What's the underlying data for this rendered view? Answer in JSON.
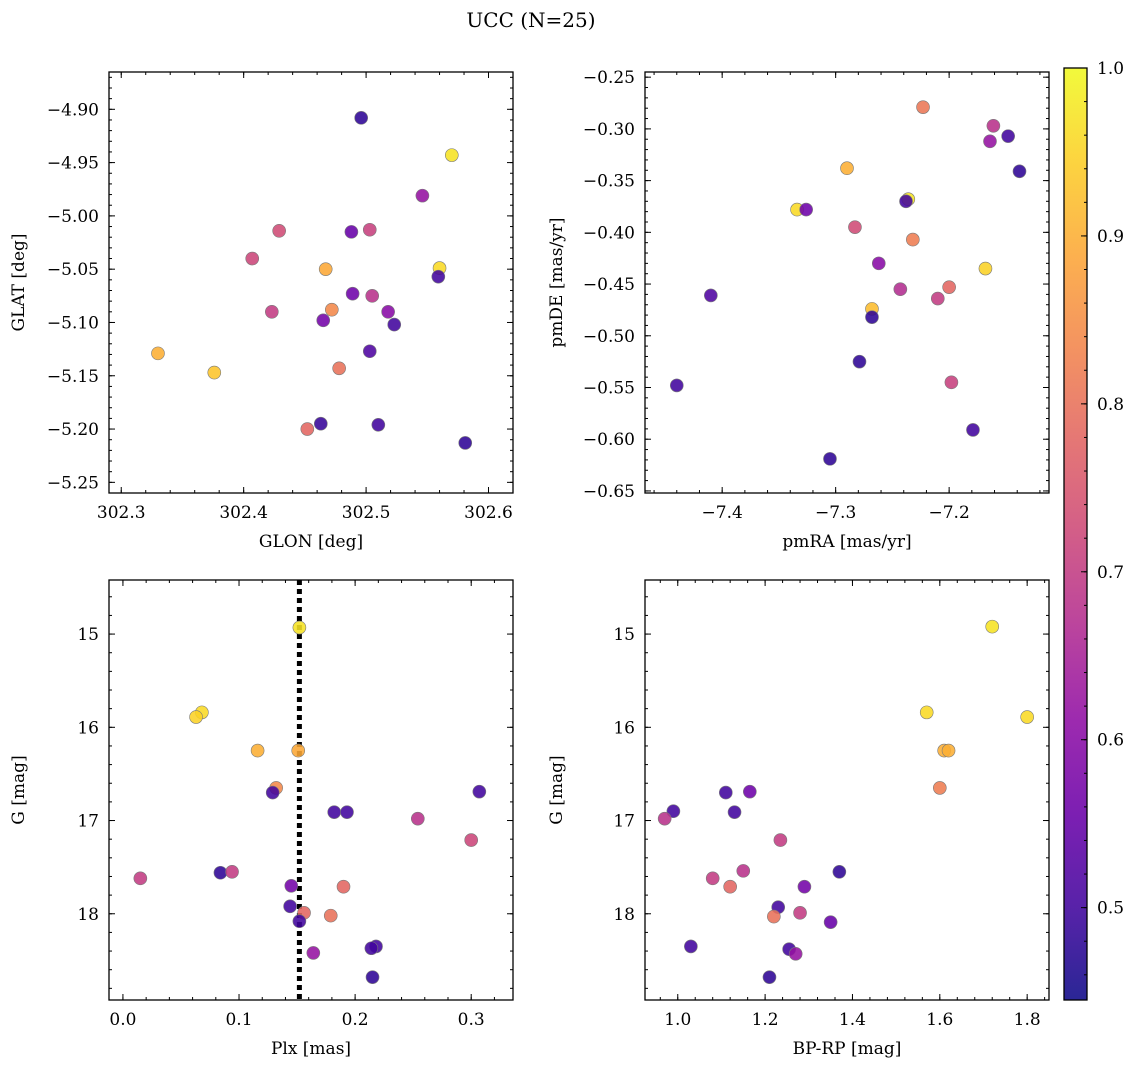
{
  "figure": {
    "title": "UCC (N=25)"
  },
  "colors": {
    "colormap": [
      "#0d0887",
      "#41049d",
      "#6a00a8",
      "#8f0da4",
      "#b12a90",
      "#cc4778",
      "#e16462",
      "#f2844b",
      "#fca636",
      "#fcce25",
      "#f0f921"
    ]
  },
  "colorbar": {
    "vmin": 0.445,
    "vmax": 1.0,
    "ticks": [
      "0.5",
      "0.6",
      "0.7",
      "0.8",
      "0.9",
      "1.0"
    ],
    "tick_values": [
      0.5,
      0.6,
      0.7,
      0.8,
      0.9,
      1.0
    ]
  },
  "chart_data": [
    {
      "type": "scatter",
      "xlabel": "GLON [deg]",
      "ylabel": "GLAT [deg]",
      "xlim": [
        302.29,
        302.62
      ],
      "ylim": [
        -5.26,
        -4.865
      ],
      "yinvert": false,
      "xticks": [
        302.3,
        302.4,
        302.5,
        302.6
      ],
      "xtick_labels": [
        "302.3",
        "302.4",
        "302.5",
        "302.6"
      ],
      "yticks": [
        -5.25,
        -5.2,
        -5.15,
        -5.1,
        -5.05,
        -5.0,
        -4.95,
        -4.9
      ],
      "ytick_labels": [
        "−5.25",
        "−5.20",
        "−5.15",
        "−5.10",
        "−5.05",
        "−5.00",
        "−4.95",
        "−4.90"
      ],
      "x": [
        302.57,
        302.56,
        302.33,
        302.376,
        302.467,
        302.472,
        302.452,
        302.478,
        302.407,
        302.429,
        302.423,
        302.503,
        302.505,
        302.496,
        302.546,
        302.488,
        302.489,
        302.518,
        302.503,
        302.523,
        302.559,
        302.465,
        302.463,
        302.51,
        302.581
      ],
      "y": [
        -4.943,
        -5.049,
        -5.129,
        -5.147,
        -5.05,
        -5.088,
        -5.2,
        -5.143,
        -5.04,
        -5.014,
        -5.09,
        -5.013,
        -5.075,
        -4.908,
        -4.981,
        -5.015,
        -5.073,
        -5.09,
        -5.127,
        -5.102,
        -5.057,
        -5.098,
        -5.195,
        -5.196,
        -5.213
      ],
      "v": [
        0.97,
        0.96,
        0.9,
        0.93,
        0.89,
        0.84,
        0.78,
        0.8,
        0.72,
        0.73,
        0.7,
        0.71,
        0.68,
        0.48,
        0.62,
        0.55,
        0.56,
        0.6,
        0.52,
        0.5,
        0.5,
        0.57,
        0.49,
        0.5,
        0.48
      ]
    },
    {
      "type": "scatter",
      "xlabel": "pmRA [mas/yr]",
      "ylabel": "pmDE [mas/yr]",
      "xlim": [
        -7.468,
        -7.112
      ],
      "ylim": [
        -0.652,
        -0.245
      ],
      "yinvert": false,
      "xticks": [
        -7.4,
        -7.3,
        -7.2
      ],
      "xtick_labels": [
        "−7.4",
        "−7.3",
        "−7.2"
      ],
      "yticks": [
        -0.65,
        -0.6,
        -0.55,
        -0.5,
        -0.45,
        -0.4,
        -0.35,
        -0.3,
        -0.25
      ],
      "ytick_labels": [
        "−0.65",
        "−0.60",
        "−0.55",
        "−0.50",
        "−0.45",
        "−0.40",
        "−0.35",
        "−0.30",
        "−0.25"
      ],
      "x": [
        -7.236,
        -7.168,
        -7.334,
        -7.29,
        -7.268,
        -7.232,
        -7.2,
        -7.223,
        -7.283,
        -7.198,
        -7.21,
        -7.161,
        -7.243,
        -7.262,
        -7.164,
        -7.326,
        -7.238,
        -7.41,
        -7.148,
        -7.44,
        -7.138,
        -7.268,
        -7.279,
        -7.305,
        -7.179
      ],
      "y": [
        -0.368,
        -0.435,
        -0.378,
        -0.338,
        -0.474,
        -0.407,
        -0.453,
        -0.279,
        -0.395,
        -0.545,
        -0.464,
        -0.297,
        -0.455,
        -0.43,
        -0.312,
        -0.378,
        -0.37,
        -0.461,
        -0.307,
        -0.548,
        -0.341,
        -0.482,
        -0.525,
        -0.619,
        -0.591
      ],
      "v": [
        0.97,
        0.95,
        0.96,
        0.9,
        0.92,
        0.82,
        0.78,
        0.81,
        0.73,
        0.71,
        0.7,
        0.68,
        0.67,
        0.6,
        0.62,
        0.56,
        0.5,
        0.52,
        0.5,
        0.5,
        0.48,
        0.48,
        0.48,
        0.48,
        0.5
      ]
    },
    {
      "type": "scatter",
      "xlabel": "Plx [mas]",
      "ylabel": "G [mag]",
      "xlim": [
        -0.012,
        0.336
      ],
      "ylim": [
        18.925,
        14.42
      ],
      "yinvert": true,
      "xticks": [
        0.0,
        0.1,
        0.2,
        0.3
      ],
      "xtick_labels": [
        "0.0",
        "0.1",
        "0.2",
        "0.3"
      ],
      "yticks": [
        15,
        16,
        17,
        18
      ],
      "ytick_labels": [
        "15",
        "16",
        "17",
        "18"
      ],
      "vline": 0.152,
      "x": [
        0.152,
        0.068,
        0.063,
        0.116,
        0.151,
        0.132,
        0.129,
        0.182,
        0.193,
        0.254,
        0.307,
        0.3,
        0.015,
        0.084,
        0.094,
        0.145,
        0.19,
        0.144,
        0.156,
        0.179,
        0.152,
        0.218,
        0.214,
        0.164,
        0.215
      ],
      "y": [
        14.93,
        15.84,
        15.89,
        16.25,
        16.25,
        16.65,
        16.7,
        16.91,
        16.91,
        16.98,
        16.69,
        17.21,
        17.62,
        17.56,
        17.55,
        17.7,
        17.71,
        17.92,
        17.99,
        18.02,
        18.08,
        18.35,
        18.37,
        18.42,
        18.68
      ],
      "v": [
        0.97,
        0.96,
        0.95,
        0.9,
        0.89,
        0.84,
        0.5,
        0.5,
        0.5,
        0.68,
        0.5,
        0.72,
        0.7,
        0.48,
        0.7,
        0.57,
        0.78,
        0.5,
        0.78,
        0.8,
        0.5,
        0.5,
        0.5,
        0.62,
        0.48
      ]
    },
    {
      "type": "scatter",
      "xlabel": "BP-RP [mag]",
      "ylabel": "G [mag]",
      "xlim": [
        0.925,
        1.85
      ],
      "ylim": [
        18.925,
        14.42
      ],
      "yinvert": true,
      "xticks": [
        1.0,
        1.2,
        1.4,
        1.6,
        1.8
      ],
      "xtick_labels": [
        "1.0",
        "1.2",
        "1.4",
        "1.6",
        "1.8"
      ],
      "yticks": [
        15,
        16,
        17,
        18
      ],
      "ytick_labels": [
        "15",
        "16",
        "17",
        "18"
      ],
      "x": [
        1.72,
        1.57,
        1.8,
        1.61,
        1.62,
        1.6,
        1.11,
        1.165,
        0.99,
        1.13,
        0.97,
        1.235,
        1.08,
        1.15,
        1.37,
        1.12,
        1.29,
        1.23,
        1.28,
        1.22,
        1.35,
        1.03,
        1.255,
        1.27,
        1.21
      ],
      "y": [
        14.92,
        15.84,
        15.89,
        16.25,
        16.25,
        16.65,
        16.7,
        16.69,
        16.9,
        16.91,
        16.98,
        17.21,
        17.62,
        17.54,
        17.55,
        17.71,
        17.71,
        17.93,
        17.99,
        18.03,
        18.09,
        18.35,
        18.38,
        18.43,
        18.68
      ],
      "v": [
        0.97,
        0.96,
        0.96,
        0.9,
        0.9,
        0.82,
        0.5,
        0.56,
        0.5,
        0.5,
        0.68,
        0.7,
        0.7,
        0.68,
        0.48,
        0.78,
        0.57,
        0.5,
        0.7,
        0.8,
        0.55,
        0.5,
        0.5,
        0.62,
        0.48
      ]
    }
  ]
}
